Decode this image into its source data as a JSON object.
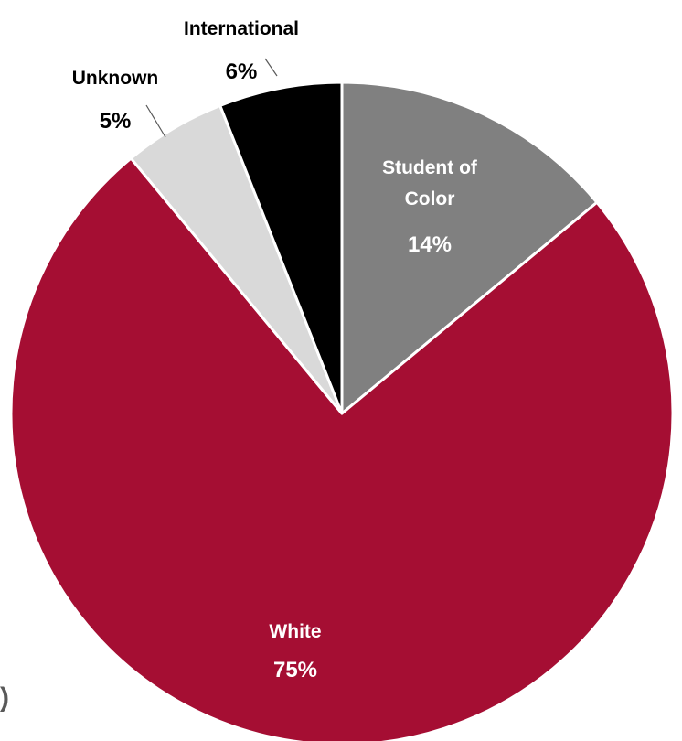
{
  "chart_data": {
    "type": "pie",
    "slices": [
      {
        "label": "Student of Color",
        "label_lines": [
          "Student of",
          "Color"
        ],
        "value": 14,
        "value_text": "14%",
        "color": "#808080",
        "label_color": "#ffffff"
      },
      {
        "label": "White",
        "label_lines": [
          "White"
        ],
        "value": 75,
        "value_text": "75%",
        "color": "#a50e33",
        "label_color": "#ffffff"
      },
      {
        "label": "Unknown",
        "label_lines": [
          "Unknown"
        ],
        "value": 5,
        "value_text": "5%",
        "color": "#d9d9d9",
        "label_color": "#000000"
      },
      {
        "label": "International",
        "label_lines": [
          "International"
        ],
        "value": 6,
        "value_text": "6%",
        "color": "#000000",
        "label_color": "#000000"
      }
    ],
    "start_angle": "12 o'clock",
    "direction": "clockwise",
    "slice_border_color": "#ffffff"
  },
  "edge_fragment": ")"
}
